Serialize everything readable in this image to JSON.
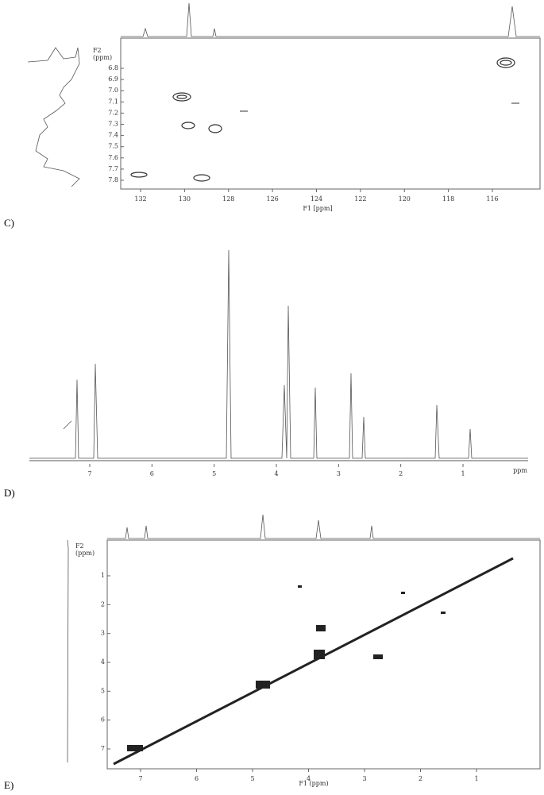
{
  "panels": [
    {
      "label": "C)",
      "x_axis_label": "F1 [ppm]",
      "y_axis_label": [
        "F2",
        "(ppm)"
      ],
      "x_ticks": [
        "132",
        "130",
        "128",
        "126",
        "124",
        "122",
        "120",
        "118",
        "116"
      ],
      "y_ticks": [
        "6.8",
        "6.9",
        "7.0",
        "7.1",
        "7.2",
        "7.3",
        "7.4",
        "7.5",
        "7.6",
        "7.7",
        "7.8"
      ]
    },
    {
      "label": "D)",
      "x_axis_label": "ppm",
      "x_ticks": [
        "7",
        "6",
        "5",
        "4",
        "3",
        "2",
        "1"
      ]
    },
    {
      "label": "E)",
      "x_axis_label": "F1 (ppm)",
      "y_axis_label": [
        "F2",
        "(ppm)"
      ],
      "x_ticks": [
        "7",
        "6",
        "5",
        "4",
        "3",
        "2",
        "1"
      ],
      "y_ticks": [
        "1",
        "2",
        "3",
        "4",
        "5",
        "6",
        "7"
      ]
    }
  ]
}
